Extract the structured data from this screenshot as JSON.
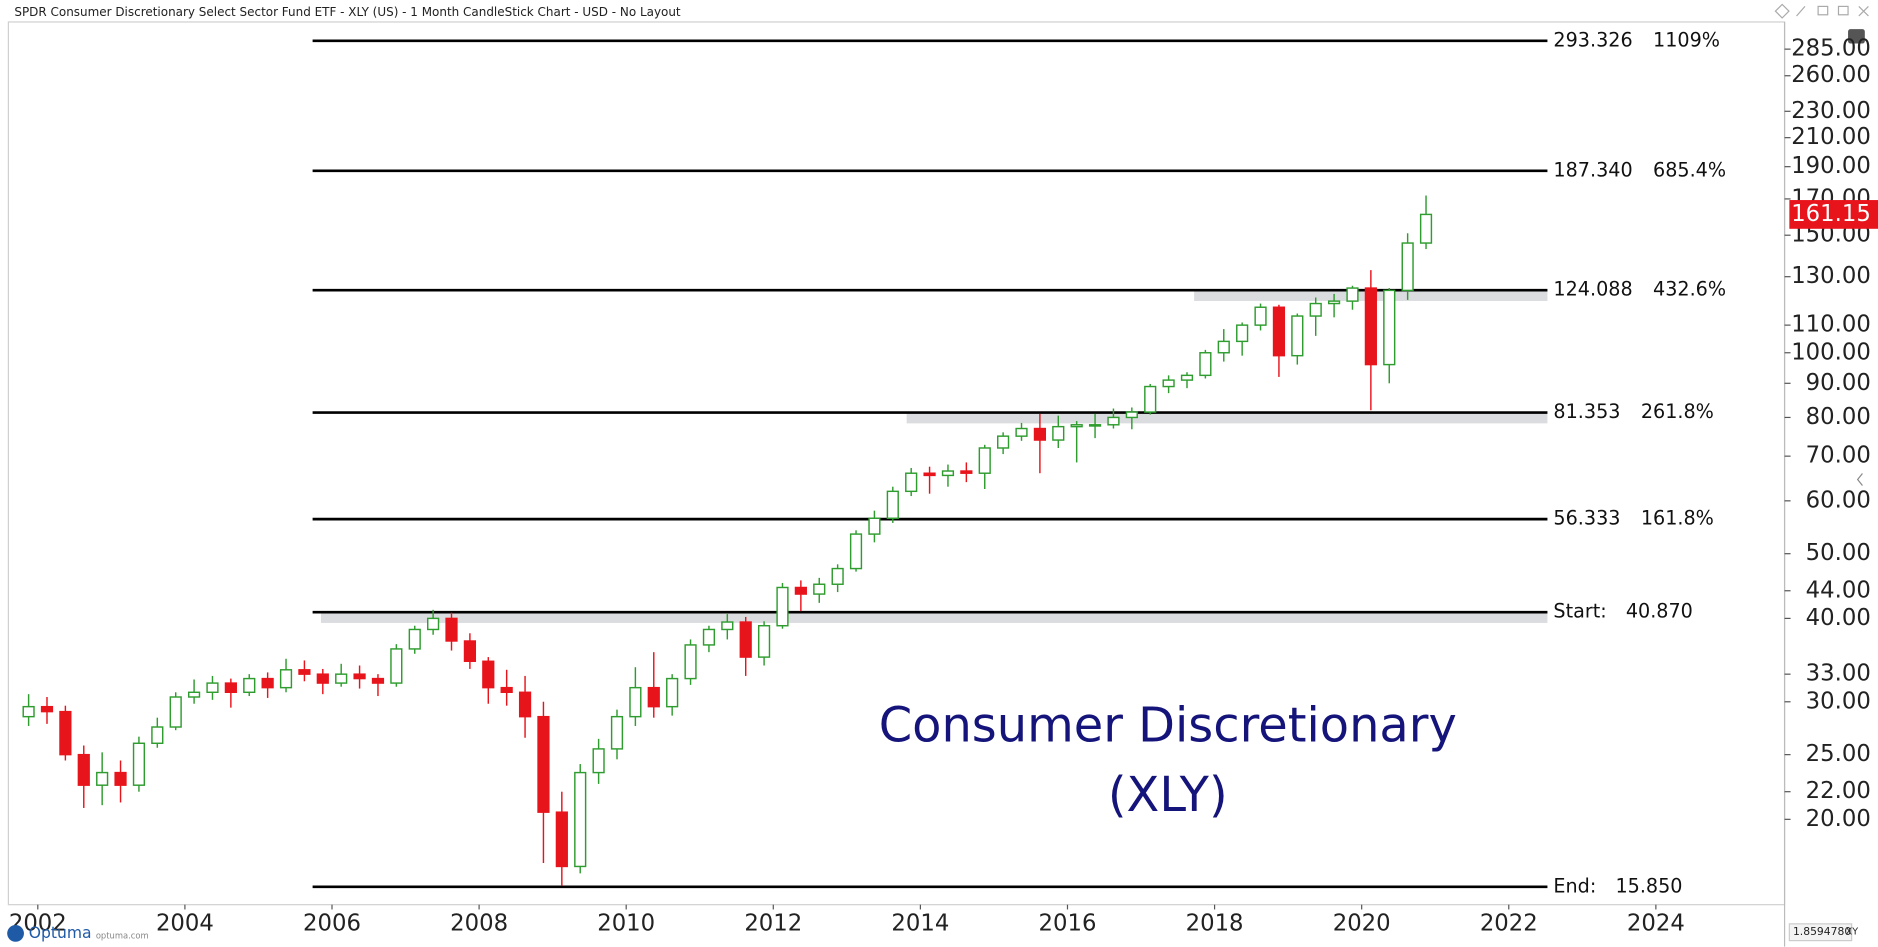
{
  "chart_data": {
    "type": "candlestick",
    "title": "SPDR Consumer Discretionary Select Sector Fund ETF - XLY (US) - 1 Month CandleStick Chart - USD - No Layout",
    "x": [
      2001.75,
      2002.0,
      2002.25,
      2002.5,
      2002.75,
      2003.0,
      2003.25,
      2003.5,
      2003.75,
      2004.0,
      2004.25,
      2004.5,
      2004.75,
      2005.0,
      2005.25,
      2005.5,
      2005.75,
      2006.0,
      2006.25,
      2006.5,
      2006.75,
      2007.0,
      2007.25,
      2007.5,
      2007.75,
      2008.0,
      2008.25,
      2008.5,
      2008.75,
      2009.0,
      2009.25,
      2009.5,
      2009.75,
      2010.0,
      2010.25,
      2010.5,
      2010.75,
      2011.0,
      2011.25,
      2011.5,
      2011.75,
      2012.0,
      2012.25,
      2012.5,
      2012.75,
      2013.0,
      2013.25,
      2013.5,
      2013.75,
      2014.0,
      2014.25,
      2014.5,
      2014.75,
      2015.0,
      2015.25,
      2015.5,
      2015.75,
      2016.0,
      2016.25,
      2016.5,
      2016.75,
      2017.0,
      2017.25,
      2017.5,
      2017.75,
      2018.0,
      2018.25,
      2018.5,
      2018.75,
      2019.0,
      2019.25,
      2019.5,
      2019.75,
      2020.0,
      2020.25,
      2020.5,
      2020.75
    ],
    "open": [
      28.5,
      29.5,
      29.0,
      25.0,
      22.5,
      23.5,
      22.5,
      26.0,
      27.5,
      30.5,
      31.0,
      32.0,
      31.0,
      32.5,
      31.5,
      33.5,
      33.0,
      32.0,
      33.0,
      32.5,
      32.0,
      36.0,
      38.5,
      40.0,
      37.0,
      34.5,
      31.5,
      31.0,
      28.5,
      20.5,
      17.0,
      23.5,
      25.5,
      28.5,
      31.5,
      29.5,
      32.5,
      36.5,
      38.5,
      39.5,
      35.0,
      39.0,
      44.5,
      43.5,
      45.0,
      47.5,
      53.5,
      56.5,
      62.0,
      66.0,
      65.5,
      66.5,
      66.0,
      72.0,
      75.0,
      77.0,
      74.0,
      77.5,
      78.0,
      78.0,
      80.0,
      81.5,
      89.0,
      91.0,
      92.5,
      100.0,
      104.0,
      110.0,
      117.0,
      99.0,
      113.5,
      118.5,
      119.5,
      125.0,
      96.0,
      124.0,
      146.0
    ],
    "high": [
      30.8,
      30.5,
      29.6,
      25.8,
      25.2,
      24.5,
      26.6,
      28.4,
      31.0,
      32.4,
      32.8,
      32.5,
      33.0,
      33.2,
      34.8,
      34.6,
      33.6,
      34.2,
      34.0,
      33.0,
      36.6,
      39.0,
      41.2,
      40.8,
      38.0,
      35.0,
      33.5,
      32.8,
      30.0,
      22.0,
      24.2,
      26.4,
      29.2,
      33.8,
      35.6,
      33.0,
      37.2,
      39.0,
      40.6,
      40.2,
      39.6,
      45.2,
      45.6,
      46.0,
      48.2,
      54.2,
      58.0,
      63.0,
      67.2,
      67.5,
      68.0,
      68.5,
      72.8,
      76.0,
      78.5,
      81.0,
      80.5,
      79.0,
      81.0,
      82.5,
      82.8,
      89.8,
      92.5,
      93.5,
      101.0,
      108.5,
      111.0,
      118.5,
      118.0,
      114.5,
      121.0,
      122.5,
      126.0,
      133.0,
      125.0,
      151.0,
      172.0
    ],
    "low": [
      27.6,
      27.8,
      24.5,
      20.8,
      21.0,
      21.2,
      22.0,
      25.6,
      27.2,
      29.8,
      30.2,
      29.4,
      30.6,
      30.4,
      31.0,
      32.2,
      30.8,
      31.6,
      31.4,
      30.6,
      31.6,
      35.4,
      37.8,
      35.8,
      33.6,
      29.8,
      29.6,
      26.5,
      17.2,
      15.9,
      16.6,
      22.6,
      24.6,
      27.6,
      28.4,
      28.6,
      31.8,
      35.6,
      37.2,
      32.8,
      34.0,
      38.6,
      41.0,
      42.2,
      43.8,
      47.0,
      52.0,
      55.6,
      61.0,
      61.5,
      63.0,
      64.0,
      62.5,
      70.5,
      73.8,
      66.0,
      72.0,
      68.5,
      74.5,
      77.0,
      76.8,
      80.8,
      87.0,
      88.5,
      91.5,
      97.0,
      99.0,
      108.0,
      92.0,
      96.0,
      106.0,
      113.0,
      116.0,
      82.0,
      90.0,
      120.0,
      143.0
    ],
    "close": [
      29.5,
      29.0,
      25.0,
      22.5,
      23.5,
      22.5,
      26.0,
      27.5,
      30.5,
      31.0,
      32.0,
      31.0,
      32.5,
      31.5,
      33.5,
      33.0,
      32.0,
      33.0,
      32.5,
      32.0,
      36.0,
      38.5,
      40.0,
      37.0,
      34.5,
      31.5,
      31.0,
      28.5,
      20.5,
      17.0,
      23.5,
      25.5,
      28.5,
      31.5,
      29.5,
      32.5,
      36.5,
      38.5,
      39.5,
      35.0,
      39.0,
      44.5,
      43.5,
      45.0,
      47.5,
      53.5,
      56.5,
      62.0,
      66.0,
      65.5,
      66.5,
      66.0,
      72.0,
      75.0,
      77.0,
      74.0,
      77.5,
      78.0,
      78.0,
      80.0,
      81.5,
      89.0,
      91.0,
      92.5,
      100.0,
      104.0,
      110.0,
      117.0,
      99.0,
      113.5,
      118.5,
      119.5,
      125.0,
      96.0,
      124.0,
      146.0,
      161.15
    ],
    "up_color": "#2e9c2e",
    "down_color": "#e8141c",
    "log_scale": true,
    "xlim": [
      2001.6,
      2025.75
    ],
    "xticks": [
      2002,
      2004,
      2006,
      2008,
      2010,
      2012,
      2014,
      2016,
      2018,
      2020,
      2022,
      2024
    ],
    "ylim": [
      14.9,
      313
    ],
    "yticks": [
      {
        "value": 285,
        "label": "285.00"
      },
      {
        "value": 260,
        "label": "260.00"
      },
      {
        "value": 230,
        "label": "230.00"
      },
      {
        "value": 210,
        "label": "210.00"
      },
      {
        "value": 190,
        "label": "190.00"
      },
      {
        "value": 170,
        "label": "170.00"
      },
      {
        "value": 150,
        "label": "150.00"
      },
      {
        "value": 130,
        "label": "130.00"
      },
      {
        "value": 110,
        "label": "110.00"
      },
      {
        "value": 100,
        "label": "100.00"
      },
      {
        "value": 90,
        "label": "90.00"
      },
      {
        "value": 80,
        "label": "80.00"
      },
      {
        "value": 70,
        "label": "70.00"
      },
      {
        "value": 60,
        "label": "60.00"
      },
      {
        "value": 50,
        "label": "50.00"
      },
      {
        "value": 44,
        "label": "44.00"
      },
      {
        "value": 40,
        "label": "40.00"
      },
      {
        "value": 33,
        "label": "33.00"
      },
      {
        "value": 30,
        "label": "30.00"
      },
      {
        "value": 25,
        "label": "25.00"
      },
      {
        "value": 22,
        "label": "22.00"
      },
      {
        "value": 20,
        "label": "20.00"
      }
    ],
    "levels": [
      {
        "value": 293.326,
        "label": "293.326",
        "tag": "1109%"
      },
      {
        "value": 187.34,
        "label": "187.340",
        "tag": "685.4%"
      },
      {
        "value": 124.088,
        "label": "124.088",
        "tag": "432.6%",
        "zone": true
      },
      {
        "value": 81.353,
        "label": "81.353",
        "tag": "261.8%",
        "zone": true
      },
      {
        "value": 56.333,
        "label": "56.333",
        "tag": "161.8%"
      },
      {
        "value": 40.87,
        "label": "40.870",
        "name": "Start:",
        "zone": true
      },
      {
        "value": 15.85,
        "label": "15.850",
        "name": "End:"
      }
    ],
    "annotation": [
      "Consumer Discretionary",
      "(XLY)"
    ],
    "annotation_color": "#14147a"
  },
  "footer": {
    "brand": "Optuma",
    "site": "optuma.com",
    "readout": "1.8594780",
    "mode": "XY"
  }
}
